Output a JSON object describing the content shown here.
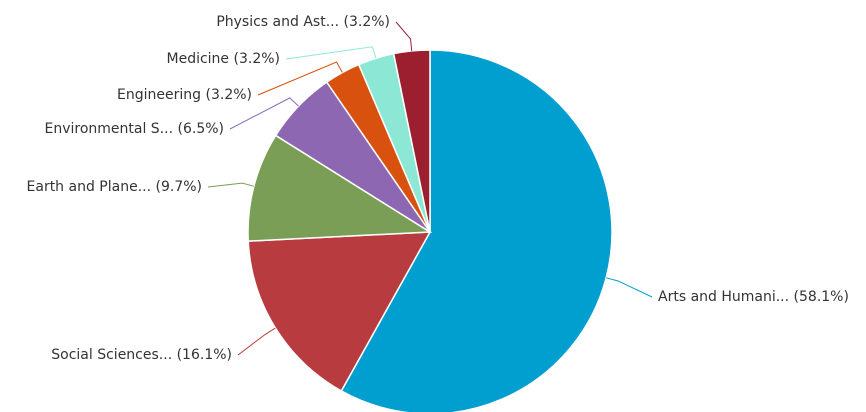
{
  "chart_data": {
    "type": "pie",
    "categories": [
      "Arts and Humani...",
      "Social Sciences...",
      "Earth and Plane...",
      "Environmental S...",
      "Engineering",
      "Medicine",
      "Physics and Ast..."
    ],
    "values": [
      58.1,
      16.1,
      9.7,
      6.5,
      3.2,
      3.2,
      3.2
    ],
    "value_labels": [
      "(58.1%)",
      "(16.1%)",
      "(9.7%)",
      "(6.5%)",
      "(3.2%)",
      "(3.2%)",
      "(3.2%)"
    ],
    "colors": [
      "#009fcf",
      "#b83b3f",
      "#7b9e56",
      "#8e67b3",
      "#d9510e",
      "#8ce8d5",
      "#9b1f2e"
    ]
  }
}
